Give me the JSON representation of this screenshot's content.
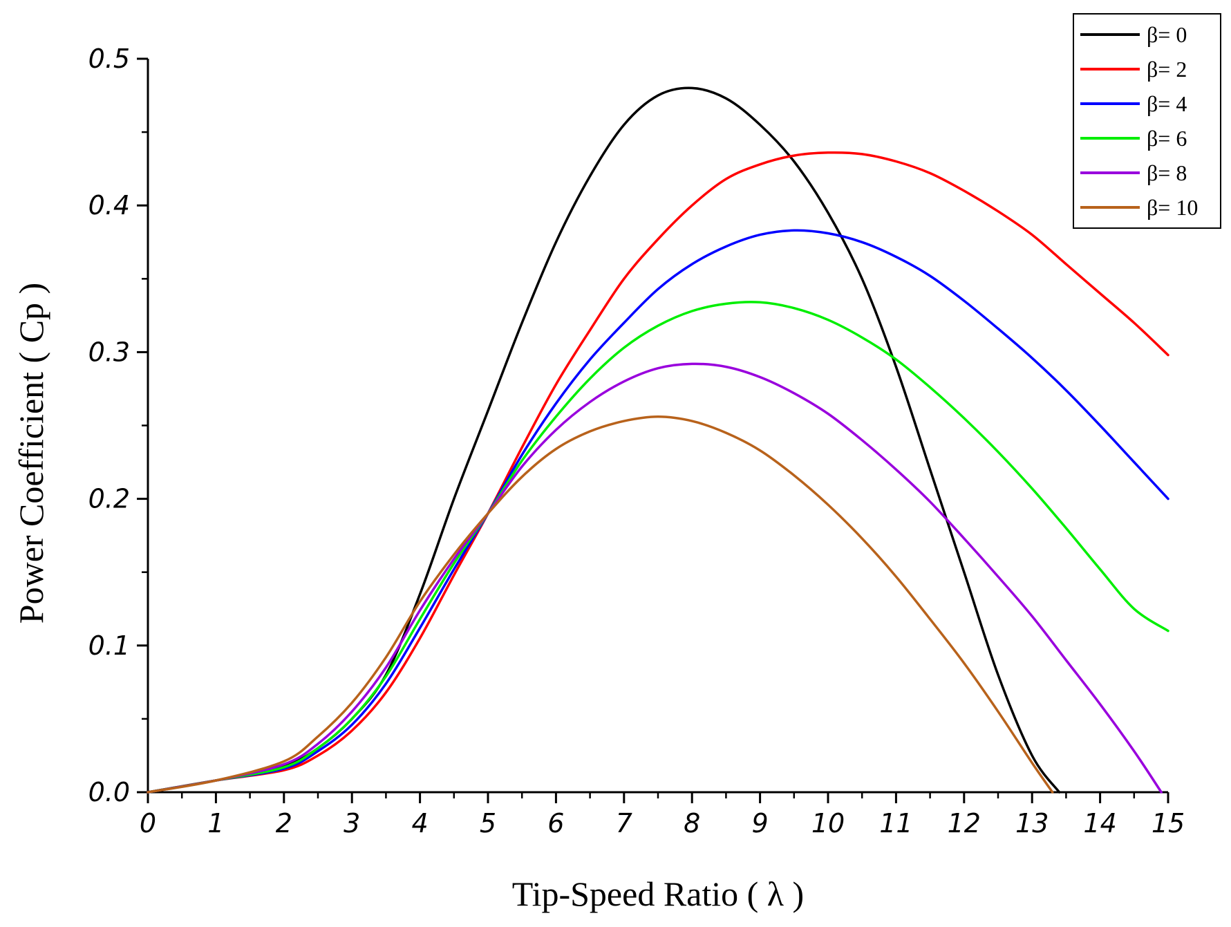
{
  "chart_data": {
    "type": "line",
    "title": "",
    "xlabel": "Tip-Speed Ratio ( λ )",
    "ylabel": "Power Coefficient ( Cp )",
    "xlim": [
      0,
      15
    ],
    "ylim": [
      0,
      0.5
    ],
    "x_ticks": [
      "0",
      "1",
      "2",
      "3",
      "4",
      "5",
      "6",
      "7",
      "8",
      "9",
      "10",
      "11",
      "12",
      "13",
      "14",
      "15"
    ],
    "y_ticks": [
      "0.0",
      "0.1",
      "0.2",
      "0.3",
      "0.4",
      "0.5"
    ],
    "grid": false,
    "legend_position": "top-right",
    "series": [
      {
        "name": "β= 0",
        "color": "#000000",
        "x": [
          0,
          1,
          2,
          2.5,
          3,
          3.5,
          4,
          4.5,
          5,
          5.5,
          6,
          6.5,
          7,
          7.5,
          8,
          8.5,
          9,
          9.5,
          10,
          10.5,
          11,
          11.5,
          12,
          12.5,
          13,
          13.4
        ],
        "values": [
          0,
          0.008,
          0.018,
          0.03,
          0.05,
          0.08,
          0.135,
          0.2,
          0.26,
          0.32,
          0.375,
          0.42,
          0.455,
          0.475,
          0.48,
          0.473,
          0.455,
          0.43,
          0.395,
          0.35,
          0.29,
          0.22,
          0.15,
          0.08,
          0.025,
          0
        ]
      },
      {
        "name": "β= 2",
        "color": "#ff0000",
        "x": [
          0,
          1,
          2,
          2.5,
          3,
          3.5,
          4,
          4.5,
          5,
          5.5,
          6,
          6.5,
          7,
          7.5,
          8,
          8.5,
          9,
          9.5,
          10,
          10.5,
          11,
          11.5,
          12,
          12.5,
          13,
          13.5,
          14,
          14.5,
          15
        ],
        "values": [
          0,
          0.008,
          0.015,
          0.025,
          0.042,
          0.068,
          0.105,
          0.148,
          0.19,
          0.235,
          0.278,
          0.315,
          0.35,
          0.377,
          0.4,
          0.418,
          0.428,
          0.434,
          0.436,
          0.435,
          0.43,
          0.422,
          0.41,
          0.396,
          0.38,
          0.36,
          0.34,
          0.32,
          0.298
        ]
      },
      {
        "name": "β= 4",
        "color": "#0000ff",
        "x": [
          0,
          1,
          2,
          2.5,
          3,
          3.5,
          4,
          4.5,
          5,
          5.5,
          6,
          6.5,
          7,
          7.5,
          8,
          8.5,
          9,
          9.5,
          10,
          10.5,
          11,
          11.5,
          12,
          12.5,
          13,
          13.5,
          14,
          14.5,
          15
        ],
        "values": [
          0,
          0.008,
          0.016,
          0.028,
          0.046,
          0.074,
          0.112,
          0.152,
          0.19,
          0.23,
          0.265,
          0.295,
          0.32,
          0.343,
          0.36,
          0.372,
          0.38,
          0.383,
          0.381,
          0.375,
          0.365,
          0.352,
          0.335,
          0.316,
          0.296,
          0.274,
          0.25,
          0.225,
          0.2
        ]
      },
      {
        "name": "β= 6",
        "color": "#00ee00",
        "x": [
          0,
          1,
          2,
          2.5,
          3,
          3.5,
          4,
          4.5,
          5,
          5.5,
          6,
          6.5,
          7,
          7.5,
          8,
          8.5,
          9,
          9.5,
          10,
          10.5,
          11,
          11.5,
          12,
          12.5,
          13,
          13.5,
          14,
          14.5,
          15
        ],
        "values": [
          0,
          0.008,
          0.017,
          0.03,
          0.05,
          0.079,
          0.118,
          0.156,
          0.19,
          0.226,
          0.256,
          0.282,
          0.303,
          0.318,
          0.328,
          0.333,
          0.334,
          0.33,
          0.322,
          0.31,
          0.295,
          0.276,
          0.255,
          0.232,
          0.207,
          0.18,
          0.152,
          0.125,
          0.11
        ]
      },
      {
        "name": "β= 8",
        "color": "#9900dd",
        "x": [
          0,
          1,
          2,
          2.5,
          3,
          3.5,
          4,
          4.5,
          5,
          5.5,
          6,
          6.5,
          7,
          7.5,
          8,
          8.5,
          9,
          9.5,
          10,
          10.5,
          11,
          11.5,
          12,
          12.5,
          13,
          13.5,
          14,
          14.5,
          14.9
        ],
        "values": [
          0,
          0.008,
          0.019,
          0.033,
          0.055,
          0.085,
          0.124,
          0.159,
          0.19,
          0.222,
          0.247,
          0.266,
          0.28,
          0.289,
          0.292,
          0.29,
          0.283,
          0.272,
          0.258,
          0.24,
          0.22,
          0.198,
          0.173,
          0.147,
          0.12,
          0.09,
          0.06,
          0.028,
          0
        ]
      },
      {
        "name": "β= 10",
        "color": "#b8621b",
        "x": [
          0,
          1,
          2,
          2.5,
          3,
          3.5,
          4,
          4.5,
          5,
          5.5,
          6,
          6.5,
          7,
          7.5,
          8,
          8.5,
          9,
          9.5,
          10,
          10.5,
          11,
          11.5,
          12,
          12.5,
          13,
          13.3
        ],
        "values": [
          0,
          0.008,
          0.021,
          0.038,
          0.061,
          0.092,
          0.13,
          0.162,
          0.19,
          0.215,
          0.234,
          0.246,
          0.253,
          0.256,
          0.253,
          0.245,
          0.233,
          0.216,
          0.196,
          0.173,
          0.147,
          0.118,
          0.088,
          0.055,
          0.02,
          0
        ]
      }
    ]
  }
}
